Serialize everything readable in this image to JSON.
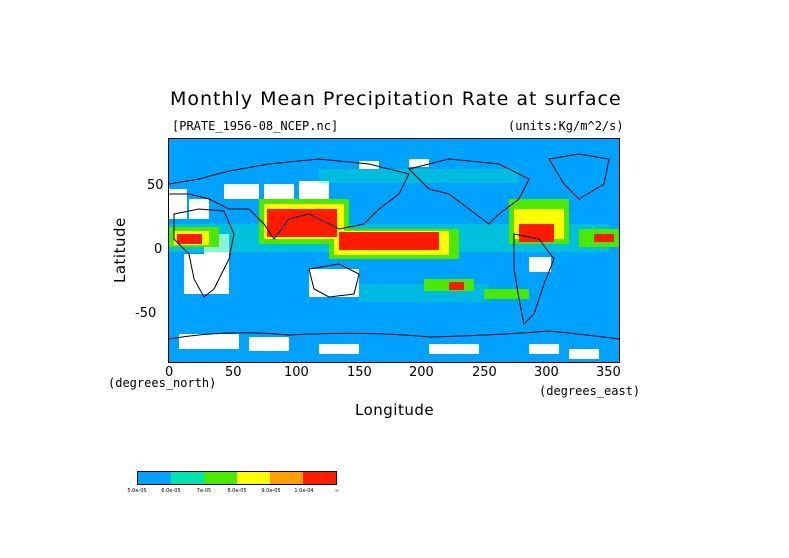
{
  "title": "Monthly Mean Precipitation Rate at surface",
  "file_label": "[PRATE_1956-08_NCEP.nc]",
  "units_label": "(units:Kg/m^2/s)",
  "y_axis_label": "Latitude",
  "x_axis_label": "Longitude",
  "y_unit_label": "(degrees_north)",
  "x_unit_label": "(degrees_east)",
  "y_ticks": [
    "50",
    "0",
    "-50"
  ],
  "x_ticks": [
    "0",
    "50",
    "100",
    "150",
    "200",
    "250",
    "300",
    "350"
  ],
  "colorbar": {
    "colors": [
      "#00a2ff",
      "#00e5b0",
      "#4be800",
      "#ffff00",
      "#ffa000",
      "#ff1a00"
    ],
    "labels": [
      "5.0e-05",
      "6.0e-05",
      "7e-05",
      "8.0e-05",
      "9.0e-05",
      "1.0e-04",
      "∞"
    ]
  }
}
